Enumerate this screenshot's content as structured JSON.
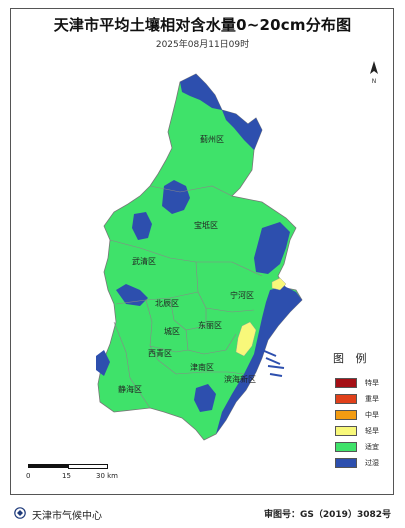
{
  "title": "天津市平均土壤相对含水量0~20cm分布图",
  "timestamp": "2025年08月11日09时",
  "north_label": "N",
  "districts": [
    {
      "id": "jizhou",
      "name": "蓟州区"
    },
    {
      "id": "baodi",
      "name": "宝坻区"
    },
    {
      "id": "wuqing",
      "name": "武清区"
    },
    {
      "id": "ninghe",
      "name": "宁河区"
    },
    {
      "id": "beichen",
      "name": "北辰区"
    },
    {
      "id": "dongli",
      "name": "东丽区"
    },
    {
      "id": "chengqu",
      "name": "城区"
    },
    {
      "id": "xiqing",
      "name": "西青区"
    },
    {
      "id": "jinnan",
      "name": "津南区"
    },
    {
      "id": "binhai",
      "name": "滨海新区"
    },
    {
      "id": "jinghai",
      "name": "静海区"
    }
  ],
  "legend": {
    "title": "图 例",
    "items": [
      {
        "label": "特旱",
        "color": "#a50f15"
      },
      {
        "label": "重旱",
        "color": "#e0401a"
      },
      {
        "label": "中旱",
        "color": "#f39c12"
      },
      {
        "label": "轻旱",
        "color": "#f8f87a"
      },
      {
        "label": "适宜",
        "color": "#3fe26a"
      },
      {
        "label": "过湿",
        "color": "#2d4fae"
      }
    ]
  },
  "scale": {
    "ticks": [
      "0",
      "15",
      "30 km"
    ]
  },
  "footer": {
    "organization": "天津市气候中心",
    "approval": "审图号：GS（2019）3082号"
  }
}
